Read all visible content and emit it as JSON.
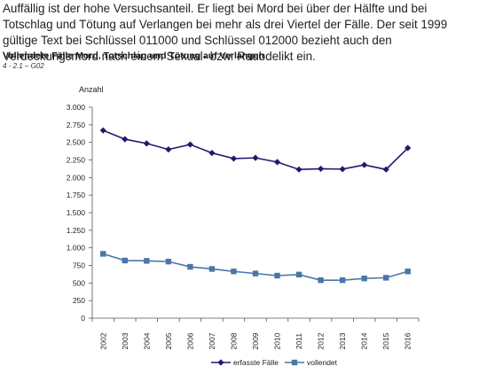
{
  "intro_text": "Auffällig ist der hohe Versuchsanteil. Er liegt bei Mord bei über der Hälfte und bei Totschlag und Tötung auf Verlangen bei mehr als drei Viertel der Fälle. Der seit 1999 gültige Text bei Schlüssel 011000 und Schlüssel 012000 bezieht auch den Verdeckungsmord nach einem Sexual- bzw. Raubdelikt ein.",
  "chart_data": {
    "type": "line",
    "title": "Vollendete Fälle Mord, Totschlag und Tötung auf Verlangen",
    "subtitle": "4 - 2.1 – G02",
    "ylabel": "Anzahl",
    "xlabel": "",
    "ylim": [
      0,
      3000
    ],
    "yticks": [
      {
        "value": 0,
        "label": "0"
      },
      {
        "value": 250,
        "label": "250"
      },
      {
        "value": 500,
        "label": "500"
      },
      {
        "value": 750,
        "label": "750"
      },
      {
        "value": 1000,
        "label": "1.000"
      },
      {
        "value": 1250,
        "label": "1.250"
      },
      {
        "value": 1500,
        "label": "1.500"
      },
      {
        "value": 1750,
        "label": "1.750"
      },
      {
        "value": 2000,
        "label": "2.000"
      },
      {
        "value": 2250,
        "label": "2.250"
      },
      {
        "value": 2500,
        "label": "2.500"
      },
      {
        "value": 2750,
        "label": "2.750"
      },
      {
        "value": 3000,
        "label": "3.000"
      }
    ],
    "categories": [
      "2002",
      "2003",
      "2004",
      "2005",
      "2006",
      "2007",
      "2008",
      "2009",
      "2010",
      "2011",
      "2012",
      "2013",
      "2014",
      "2015",
      "2016"
    ],
    "grid": false,
    "legend_position": "bottom",
    "series": [
      {
        "name": "erfasste Fälle",
        "marker": "diamond",
        "color": "#1f1a6e",
        "values": [
          2670,
          2545,
          2485,
          2400,
          2470,
          2350,
          2270,
          2280,
          2220,
          2115,
          2125,
          2120,
          2180,
          2115,
          2420
        ]
      },
      {
        "name": "vollendet",
        "marker": "square",
        "color": "#4a76a8",
        "values": [
          915,
          820,
          815,
          805,
          730,
          700,
          665,
          635,
          605,
          620,
          540,
          540,
          565,
          575,
          665
        ]
      }
    ]
  }
}
